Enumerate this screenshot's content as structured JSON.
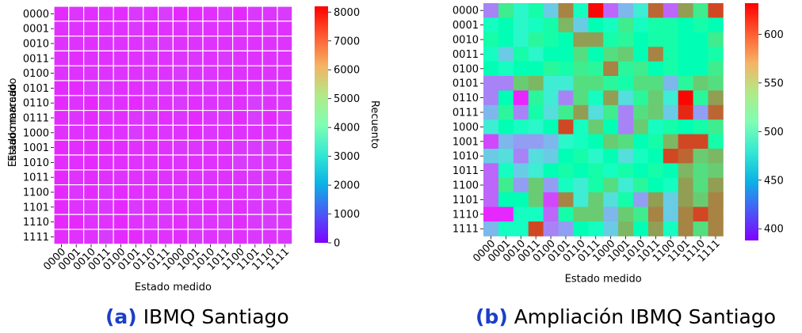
{
  "figure": {
    "captions": [
      {
        "label": "(a)",
        "text": "IBMQ Santiago"
      },
      {
        "label": "(b)",
        "text": "Ampliación IBMQ Santiago"
      }
    ]
  },
  "chart_data": [
    {
      "type": "heatmap",
      "title": "",
      "xlabel": "Estado medido",
      "ylabel": "Estado marcado",
      "colorbar_label": "Recuento",
      "colormap": "rainbow",
      "x_categories": [
        "0000",
        "0001",
        "0010",
        "0011",
        "0100",
        "0101",
        "0110",
        "0111",
        "1000",
        "1001",
        "1010",
        "1011",
        "1100",
        "1101",
        "1110",
        "1111"
      ],
      "y_categories": [
        "0000",
        "0001",
        "0010",
        "0011",
        "0100",
        "0101",
        "0110",
        "0111",
        "1000",
        "1001",
        "1010",
        "1011",
        "1100",
        "1101",
        "1110",
        "1111"
      ],
      "color_range": [
        0,
        8200
      ],
      "colorbar_ticks": [
        0,
        1000,
        2000,
        3000,
        4000,
        5000,
        6000,
        7000,
        8000
      ],
      "grid": true,
      "values": [
        [
          430,
          540,
          490,
          520,
          460,
          590,
          500,
          630,
          420,
          450,
          480,
          600,
          420,
          580,
          540,
          610
        ],
        [
          500,
          510,
          490,
          500,
          520,
          570,
          460,
          510,
          500,
          540,
          500,
          520,
          520,
          510,
          520,
          510
        ],
        [
          520,
          510,
          490,
          530,
          520,
          510,
          580,
          580,
          520,
          530,
          510,
          520,
          520,
          510,
          510,
          540
        ],
        [
          500,
          460,
          520,
          490,
          510,
          510,
          550,
          510,
          550,
          560,
          510,
          590,
          520,
          510,
          510,
          520
        ],
        [
          510,
          500,
          510,
          510,
          530,
          520,
          540,
          530,
          590,
          530,
          540,
          510,
          520,
          510,
          510,
          540
        ],
        [
          430,
          430,
          560,
          570,
          480,
          480,
          550,
          550,
          530,
          520,
          550,
          550,
          450,
          530,
          560,
          550
        ],
        [
          430,
          510,
          400,
          530,
          480,
          430,
          550,
          500,
          580,
          470,
          530,
          560,
          480,
          630,
          530,
          580
        ],
        [
          450,
          530,
          430,
          520,
          470,
          540,
          580,
          470,
          540,
          430,
          550,
          560,
          460,
          620,
          440,
          600
        ],
        [
          480,
          510,
          500,
          490,
          510,
          610,
          500,
          560,
          510,
          430,
          560,
          500,
          520,
          510,
          520,
          540
        ],
        [
          410,
          450,
          440,
          440,
          450,
          490,
          500,
          510,
          560,
          550,
          510,
          520,
          570,
          610,
          610,
          520
        ],
        [
          460,
          470,
          430,
          470,
          460,
          510,
          520,
          490,
          510,
          470,
          500,
          510,
          610,
          600,
          560,
          570
        ],
        [
          420,
          500,
          460,
          480,
          510,
          520,
          510,
          520,
          500,
          520,
          510,
          520,
          510,
          570,
          550,
          560
        ],
        [
          420,
          540,
          440,
          560,
          440,
          500,
          480,
          520,
          550,
          480,
          530,
          510,
          500,
          580,
          550,
          580
        ],
        [
          420,
          510,
          510,
          560,
          410,
          590,
          480,
          560,
          470,
          520,
          440,
          580,
          460,
          580,
          560,
          590
        ],
        [
          400,
          400,
          500,
          500,
          420,
          520,
          560,
          560,
          450,
          560,
          540,
          590,
          460,
          590,
          610,
          590
        ],
        [
          450,
          500,
          500,
          610,
          430,
          440,
          510,
          500,
          460,
          570,
          510,
          580,
          500,
          590,
          550,
          590
        ]
      ]
    },
    {
      "type": "heatmap",
      "title": "",
      "xlabel": "Estado medido",
      "ylabel": "Estado marcado",
      "colorbar_label": "Recuento",
      "colormap": "rainbow",
      "x_categories": [
        "0000",
        "0001",
        "0010",
        "0011",
        "0100",
        "0101",
        "0110",
        "0111",
        "1000",
        "1001",
        "1010",
        "1011",
        "1100",
        "1101",
        "1110",
        "1111"
      ],
      "y_categories": [
        "0000",
        "0001",
        "0010",
        "0011",
        "0100",
        "0101",
        "0110",
        "0111",
        "1000",
        "1001",
        "1010",
        "1011",
        "1100",
        "1101",
        "1110",
        "1111"
      ],
      "color_range": [
        388,
        632
      ],
      "colorbar_ticks": [
        400,
        450,
        500,
        550,
        600
      ],
      "grid": false,
      "values": [
        [
          430,
          540,
          490,
          520,
          460,
          590,
          500,
          630,
          420,
          450,
          480,
          600,
          420,
          580,
          540,
          610
        ],
        [
          500,
          510,
          490,
          500,
          520,
          570,
          460,
          510,
          500,
          540,
          500,
          520,
          520,
          510,
          520,
          510
        ],
        [
          520,
          510,
          490,
          530,
          520,
          510,
          580,
          580,
          520,
          530,
          510,
          520,
          520,
          510,
          510,
          540
        ],
        [
          500,
          460,
          520,
          490,
          510,
          510,
          550,
          510,
          550,
          560,
          510,
          590,
          520,
          510,
          510,
          520
        ],
        [
          510,
          500,
          510,
          510,
          530,
          520,
          540,
          530,
          590,
          530,
          540,
          510,
          520,
          510,
          510,
          540
        ],
        [
          430,
          430,
          560,
          570,
          480,
          480,
          550,
          550,
          530,
          520,
          550,
          550,
          450,
          530,
          560,
          550
        ],
        [
          430,
          510,
          400,
          530,
          480,
          430,
          550,
          500,
          580,
          470,
          530,
          560,
          480,
          630,
          530,
          580
        ],
        [
          450,
          530,
          430,
          520,
          470,
          540,
          580,
          470,
          540,
          430,
          550,
          560,
          460,
          620,
          440,
          600
        ],
        [
          480,
          510,
          500,
          490,
          510,
          610,
          500,
          560,
          510,
          430,
          560,
          500,
          520,
          510,
          520,
          540
        ],
        [
          410,
          450,
          440,
          440,
          450,
          490,
          500,
          510,
          560,
          550,
          510,
          520,
          570,
          610,
          610,
          520
        ],
        [
          460,
          470,
          430,
          470,
          460,
          510,
          520,
          490,
          510,
          470,
          500,
          510,
          610,
          600,
          560,
          570
        ],
        [
          420,
          500,
          460,
          480,
          510,
          520,
          510,
          520,
          500,
          520,
          510,
          520,
          510,
          570,
          550,
          560
        ],
        [
          420,
          540,
          440,
          560,
          440,
          500,
          480,
          520,
          550,
          480,
          530,
          510,
          500,
          580,
          550,
          580
        ],
        [
          420,
          510,
          510,
          560,
          410,
          590,
          480,
          560,
          470,
          520,
          440,
          580,
          460,
          580,
          560,
          590
        ],
        [
          400,
          400,
          500,
          500,
          420,
          520,
          560,
          560,
          450,
          560,
          540,
          590,
          460,
          590,
          610,
          590
        ],
        [
          450,
          500,
          500,
          610,
          430,
          440,
          510,
          500,
          460,
          570,
          510,
          580,
          500,
          590,
          550,
          590
        ]
      ]
    }
  ]
}
